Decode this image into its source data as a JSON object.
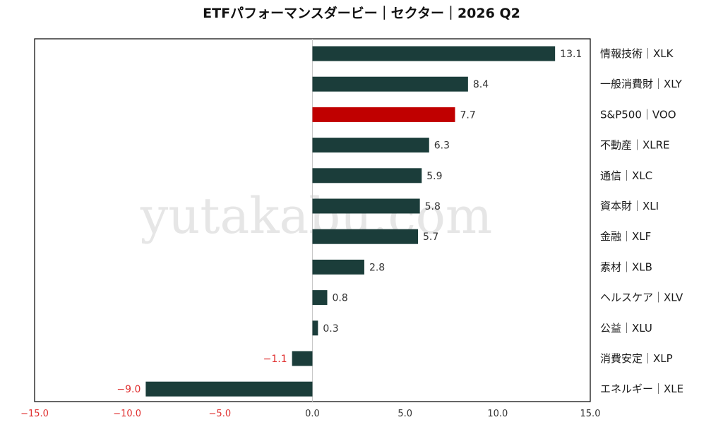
{
  "chart_data": {
    "type": "bar",
    "orientation": "horizontal",
    "title": "ETFパフォーマンスダービー｜セクター｜2026 Q2",
    "watermark": "yutakabu.com",
    "categories": [
      "情報技術｜XLK",
      "一般消費財｜XLY",
      "S&P500｜VOO",
      "不動産｜XLRE",
      "通信｜XLC",
      "資本財｜XLI",
      "金融｜XLF",
      "素材｜XLB",
      "ヘルスケア｜XLV",
      "公益｜XLU",
      "消費安定｜XLP",
      "エネルギー｜XLE"
    ],
    "values": [
      13.1,
      8.4,
      7.7,
      6.3,
      5.9,
      5.8,
      5.7,
      2.8,
      0.8,
      0.3,
      -1.1,
      -9.0
    ],
    "value_labels": [
      "13.1",
      "8.4",
      "7.7",
      "6.3",
      "5.9",
      "5.8",
      "5.7",
      "2.8",
      "0.8",
      "0.3",
      "−1.1",
      "−9.0"
    ],
    "highlight_category": "S&P500｜VOO",
    "xlim": [
      -15,
      15
    ],
    "xticks": [
      -15,
      -10,
      -5,
      0,
      5,
      10,
      15
    ],
    "xtick_labels": [
      "−15.0",
      "−10.0",
      "−5.0",
      "0.0",
      "5.0",
      "10.0",
      "15.0"
    ],
    "xlabel": "",
    "ylabel": "",
    "grid": false,
    "legend": "none",
    "colors": {
      "bar": "#1b3d3a",
      "highlight_bar": "#c00000",
      "negative_text": "#e03030",
      "text": "#333333",
      "zero_line": "#c8c8c8",
      "frame": "#000000"
    }
  }
}
